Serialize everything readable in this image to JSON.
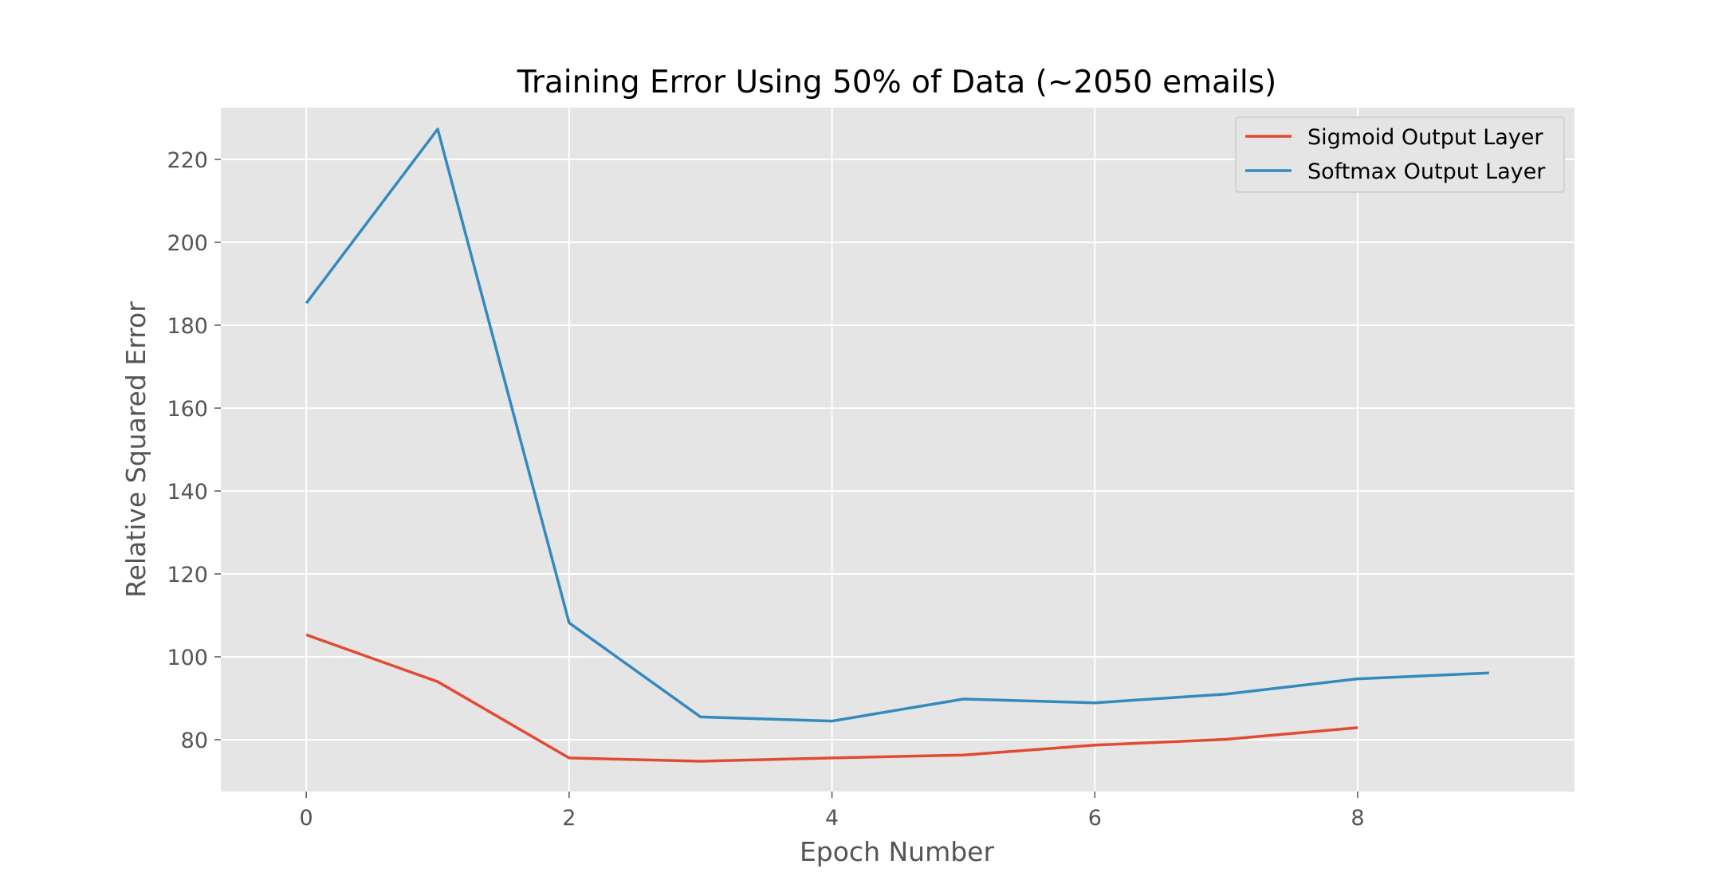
{
  "chart_data": {
    "type": "line",
    "title": "Training Error Using 50% of Data (~2050 emails)",
    "xlabel": "Epoch Number",
    "ylabel": "Relative Squared Error",
    "xlim": [
      -0.65,
      9.65
    ],
    "ylim": [
      67.5,
      232.5
    ],
    "xticks": [
      0,
      2,
      4,
      6,
      8
    ],
    "yticks": [
      80,
      100,
      120,
      140,
      160,
      180,
      200,
      220
    ],
    "grid": true,
    "legend_position": "top-right",
    "series": [
      {
        "name": "Sigmoid Output Layer",
        "color": "#E24A33",
        "x": [
          0,
          1,
          2,
          3,
          4,
          5,
          6,
          7,
          8
        ],
        "values": [
          105.3,
          94.0,
          75.6,
          74.8,
          75.6,
          76.3,
          78.7,
          80.1,
          82.9
        ]
      },
      {
        "name": "Softmax Output Layer",
        "color": "#348ABD",
        "x": [
          0,
          1,
          2,
          3,
          4,
          5,
          6,
          7,
          8,
          9
        ],
        "values": [
          185.3,
          227.3,
          108.2,
          85.5,
          84.5,
          89.8,
          88.9,
          91.0,
          94.7,
          96.1
        ]
      }
    ],
    "colors": {
      "plot_background": "#E5E5E5",
      "grid": "#FFFFFF",
      "tick_text": "#555555"
    }
  }
}
